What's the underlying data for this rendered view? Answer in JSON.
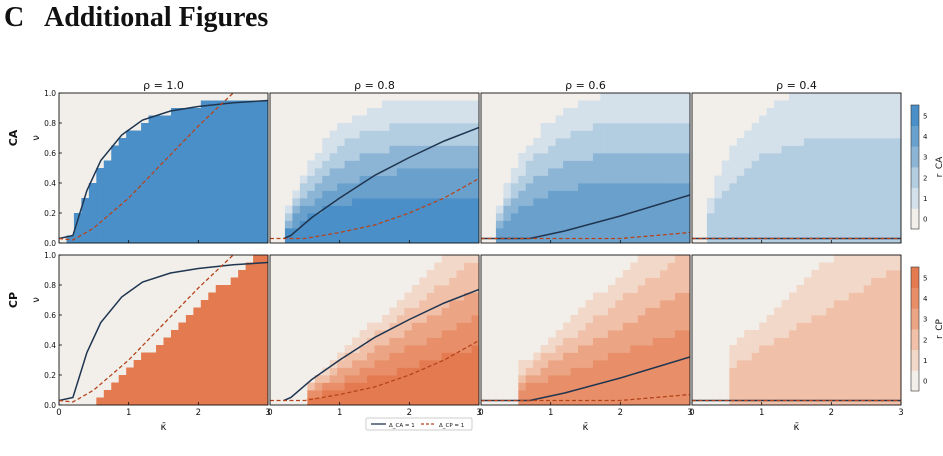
{
  "section": {
    "number": "C",
    "title": "Additional Figures"
  },
  "chart_data": {
    "type": "heatmap",
    "panel_titles": [
      "ρ = 1.0",
      "ρ = 0.8",
      "ρ = 0.6",
      "ρ = 0.4"
    ],
    "rho": [
      1.0,
      0.8,
      0.6,
      0.4
    ],
    "row_labels": [
      "CA",
      "CP"
    ],
    "ylabel": "ν",
    "xlabel": "κ̄",
    "xlim": [
      0,
      3
    ],
    "ylim": [
      0,
      1
    ],
    "xticks": [
      "0",
      "1",
      "2",
      "3"
    ],
    "yticks": [
      "0.0",
      "0.2",
      "0.4",
      "0.6",
      "0.8",
      "1.0"
    ],
    "colorbars": [
      {
        "row": "CA",
        "label": "r_CA",
        "ticks": [
          "0",
          "1",
          "2",
          "3",
          "4",
          "5"
        ],
        "colors": [
          "#f2efea",
          "#d4e0ea",
          "#b3cde1",
          "#8cb5d5",
          "#6aa1cc",
          "#4a8fc7"
        ]
      },
      {
        "row": "CP",
        "label": "r_CP",
        "ticks": [
          "0",
          "1",
          "2",
          "3",
          "4",
          "5"
        ],
        "colors": [
          "#f2efea",
          "#f2d8c9",
          "#f0c0a8",
          "#eba585",
          "#e88e68",
          "#e47a50"
        ]
      }
    ],
    "legend": {
      "placement": "bottom-center",
      "entries": [
        {
          "label": "Δ_CA = 1",
          "style": "solid",
          "color": "#1f3550"
        },
        {
          "label": "Δ_CP = 1",
          "style": "dashed",
          "color": "#b5441c"
        }
      ]
    },
    "line_series": {
      "solid": [
        [
          [
            0,
            0.03
          ],
          [
            0.2,
            0.05
          ],
          [
            0.4,
            0.35
          ],
          [
            0.6,
            0.55
          ],
          [
            0.9,
            0.72
          ],
          [
            1.2,
            0.82
          ],
          [
            1.6,
            0.88
          ],
          [
            2,
            0.91
          ],
          [
            2.5,
            0.935
          ],
          [
            3,
            0.95
          ]
        ],
        [
          [
            0.2,
            0.03
          ],
          [
            0.3,
            0.05
          ],
          [
            0.6,
            0.17
          ],
          [
            1,
            0.3
          ],
          [
            1.5,
            0.45
          ],
          [
            2,
            0.57
          ],
          [
            2.5,
            0.68
          ],
          [
            3,
            0.77
          ]
        ],
        [
          [
            0,
            0.03
          ],
          [
            0.7,
            0.03
          ],
          [
            1.2,
            0.08
          ],
          [
            2,
            0.18
          ],
          [
            3,
            0.32
          ]
        ],
        [
          [
            0,
            0.03
          ],
          [
            3,
            0.03
          ]
        ]
      ],
      "dashed": [
        [
          [
            0,
            0.03
          ],
          [
            0.2,
            0.02
          ],
          [
            0.5,
            0.1
          ],
          [
            1,
            0.3
          ],
          [
            1.5,
            0.54
          ],
          [
            2,
            0.78
          ],
          [
            2.5,
            1.0
          ]
        ],
        [
          [
            0,
            0.03
          ],
          [
            0.5,
            0.03
          ],
          [
            1,
            0.07
          ],
          [
            1.5,
            0.12
          ],
          [
            2,
            0.2
          ],
          [
            2.5,
            0.3
          ],
          [
            3,
            0.43
          ]
        ],
        [
          [
            0,
            0.03
          ],
          [
            1.2,
            0.03
          ],
          [
            2,
            0.03
          ],
          [
            2.5,
            0.05
          ],
          [
            3,
            0.07
          ]
        ],
        [
          [
            0,
            0.03
          ],
          [
            3,
            0.03
          ]
        ]
      ]
    }
  }
}
